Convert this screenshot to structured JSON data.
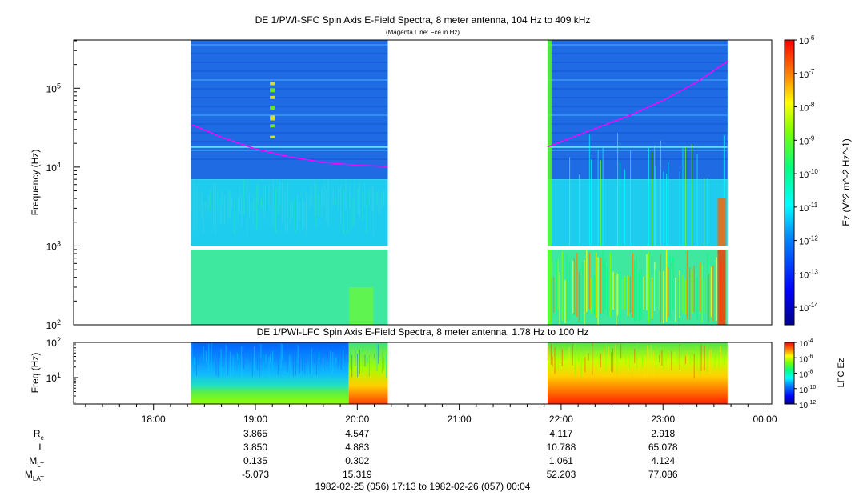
{
  "colors": {
    "spectral_scale": [
      "#00008f",
      "#0000ff",
      "#0080ff",
      "#00ffff",
      "#00ff80",
      "#80ff00",
      "#ffff00",
      "#ff8000",
      "#ff0000"
    ],
    "fce_line": "#ff00ff",
    "sfc_high_band_bg": "#1e6be4",
    "sfc_mid_band_bg": "#1ecdee",
    "sfc_low_band_bg": "#3ee89e",
    "data_gap_line": "#ffffff"
  },
  "chart_data": [
    {
      "type": "heatmap",
      "title": "DE 1/PWI-SFC  Spin Axis E-Field Spectra, 8 meter antenna, 104 Hz to 409 kHz",
      "subtitle": "(Magenta Line: Fce in Hz)",
      "ylabel": "Frequency (Hz)",
      "yscale": "log",
      "ylim": [
        100,
        409000
      ],
      "y_tick_labels": [
        "10^2",
        "10^3",
        "10^4",
        "10^5"
      ],
      "x_range_utc": [
        "17:13",
        "00:04"
      ],
      "data_intervals_utc": [
        [
          "18:22",
          "20:18"
        ],
        [
          "21:52",
          "23:38"
        ]
      ],
      "colorbar": {
        "label": "Ez (V^2 m^-2 Hz^-1)",
        "scale": "log",
        "range": [
          3e-15,
          1e-06
        ],
        "tick_labels": [
          "10^-6",
          "10^-7",
          "10^-8",
          "10^-9",
          "10^-10",
          "10^-11",
          "10^-12",
          "10^-13",
          "10^-14"
        ]
      },
      "fce_line": {
        "name": "Fce",
        "interval_1": {
          "x": [
            "18:22",
            "18:40",
            "19:00",
            "19:20",
            "19:40",
            "20:00",
            "20:18"
          ],
          "y": [
            35000,
            24000,
            17000,
            13500,
            11500,
            10500,
            10200
          ]
        },
        "interval_2": {
          "x": [
            "21:52",
            "22:15",
            "22:40",
            "23:00",
            "23:20",
            "23:38"
          ],
          "y": [
            18000,
            28000,
            45000,
            70000,
            120000,
            220000
          ]
        }
      }
    },
    {
      "type": "heatmap",
      "title": "DE 1/PWI-LFC  Spin Axis E-Field Spectra, 8 meter antenna, 1.78 Hz to 100 Hz",
      "ylabel": "Freq (Hz)",
      "yscale": "log",
      "ylim": [
        1.78,
        100
      ],
      "y_tick_labels": [
        "10^1",
        "10^2"
      ],
      "data_intervals_utc": [
        [
          "18:22",
          "20:18"
        ],
        [
          "21:52",
          "23:38"
        ]
      ],
      "colorbar": {
        "label": "LFC Ez",
        "scale": "log",
        "range": [
          1e-12,
          0.0001
        ],
        "tick_labels": [
          "10^-4",
          "10^-6",
          "10^-8",
          "10^-10",
          "10^-12"
        ]
      }
    }
  ],
  "time_axis": {
    "tick_labels": [
      "18:00",
      "19:00",
      "20:00",
      "21:00",
      "22:00",
      "23:00",
      "00:00"
    ],
    "range_label": "1982-02-25 (056) 17:13 to 1982-02-26 (057) 00:04"
  },
  "ephemeris": {
    "rows": [
      {
        "label": "R",
        "sub": "e",
        "values": [
          "3.865",
          "4.547",
          "",
          "4.117",
          "2.918",
          ""
        ]
      },
      {
        "label": "L",
        "sub": "",
        "values": [
          "3.850",
          "4.883",
          "",
          "10.788",
          "65.078",
          ""
        ]
      },
      {
        "label": "M",
        "sub": "LT",
        "values": [
          "0.135",
          "0.302",
          "",
          "1.061",
          "4.124",
          ""
        ]
      },
      {
        "label": "M",
        "sub": "LAT",
        "values": [
          "-5.073",
          "15.319",
          "",
          "52.203",
          "77.086",
          ""
        ]
      }
    ]
  }
}
